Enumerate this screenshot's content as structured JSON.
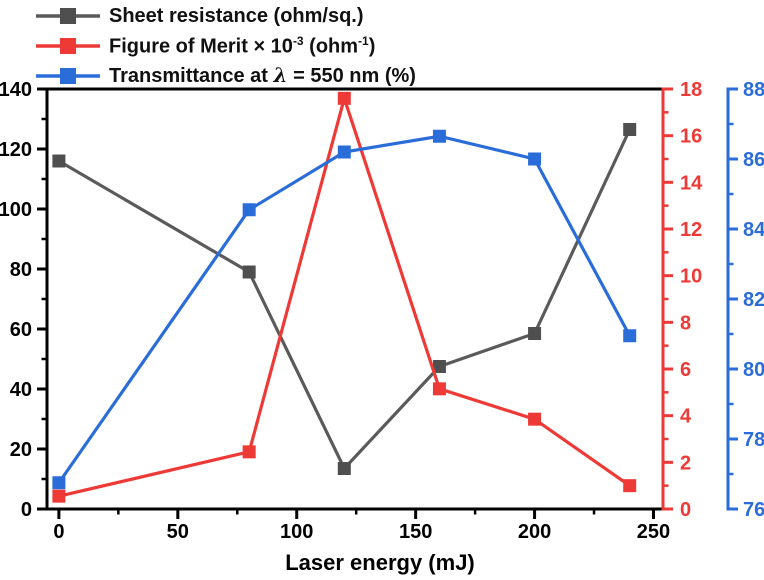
{
  "chart_data": {
    "type": "line",
    "title": "",
    "xlabel": "Laser energy (mJ)",
    "x_values": [
      0,
      80,
      120,
      160,
      200,
      240
    ],
    "series": [
      {
        "id": "sheet-resistance",
        "name": "Sheet resistance (ohm/sq.)",
        "axis": "left",
        "line_color": "#5A5A5A",
        "marker_color": "#4F4F4F",
        "values": [
          116,
          79,
          13.5,
          47.5,
          58.5,
          126.5
        ]
      },
      {
        "id": "figure-of-merit",
        "name": "Figure of Merit × 10⁻³ (ohm⁻¹)",
        "axis": "fom",
        "line_color": "#EE3A36",
        "marker_color": "#EE3A36",
        "values": [
          0.55,
          2.45,
          17.6,
          5.15,
          3.85,
          1.0
        ]
      },
      {
        "id": "transmittance",
        "name": "Transmittance at λ = 550 nm (%)",
        "axis": "transmittance",
        "line_color": "#2B6DD8",
        "marker_color": "#2B6DD8",
        "values": [
          76.75,
          84.55,
          86.2,
          86.65,
          86.0,
          80.95
        ]
      }
    ],
    "axes": {
      "x": {
        "min": -5,
        "max": 254,
        "major_ticks": [
          0,
          50,
          100,
          150,
          200,
          250
        ],
        "minor_ticks": [
          25,
          75,
          125,
          175,
          225
        ],
        "color": "#000000"
      },
      "left": {
        "min": 0,
        "max": 140,
        "major_ticks": [
          0,
          20,
          40,
          60,
          80,
          100,
          120,
          140
        ],
        "minor_ticks": [
          10,
          30,
          50,
          70,
          90,
          110,
          130
        ],
        "color": "#000000"
      },
      "fom": {
        "min": 0,
        "max": 18,
        "major_ticks": [
          0,
          2,
          4,
          6,
          8,
          10,
          12,
          14,
          16,
          18
        ],
        "minor_ticks": [
          1,
          3,
          5,
          7,
          9,
          11,
          13,
          15,
          17
        ],
        "color": "#EE3A36"
      },
      "transmittance": {
        "min": 76,
        "max": 88,
        "major_ticks": [
          76,
          78,
          80,
          82,
          84,
          86,
          88
        ],
        "minor_ticks": [
          77,
          79,
          81,
          83,
          85,
          87
        ],
        "color": "#2B6DD8"
      }
    },
    "legend": {
      "position": "top-left",
      "entries": [
        {
          "series": "sheet-resistance",
          "parts": [
            {
              "t": "Sheet resistance (ohm/sq.)"
            }
          ]
        },
        {
          "series": "figure-of-merit",
          "parts": [
            {
              "t": "Figure of Merit × 10"
            },
            {
              "t": "-3",
              "sup": true
            },
            {
              "t": " (ohm"
            },
            {
              "t": "-1",
              "sup": true
            },
            {
              "t": ")"
            }
          ]
        },
        {
          "series": "transmittance",
          "parts": [
            {
              "t": "Transmittance at "
            },
            {
              "t": "λ",
              "italic": true
            },
            {
              "t": " = 550 nm (%)"
            }
          ]
        }
      ]
    }
  }
}
